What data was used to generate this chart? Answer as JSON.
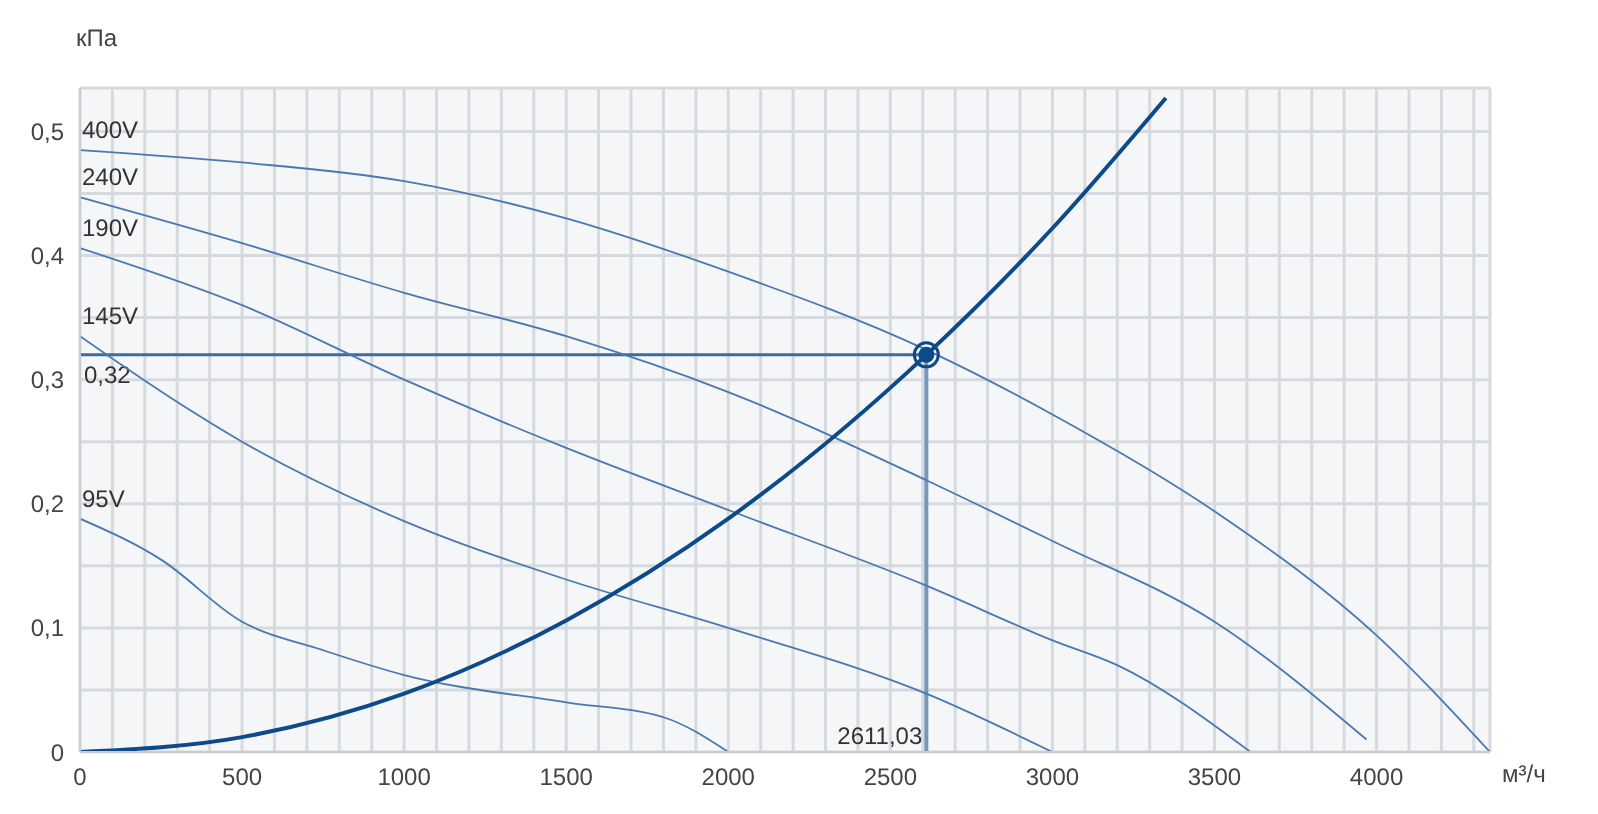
{
  "chart_data": {
    "type": "line",
    "xlabel": "м³/ч",
    "ylabel": "кПа",
    "xlim": [
      0,
      4350
    ],
    "ylim": [
      0,
      0.535
    ],
    "xticks": [
      0,
      {
        "value": 100,
        "label": null
      },
      {
        "value": 200,
        "label": null
      },
      {
        "value": 300,
        "label": null
      },
      {
        "value": 400,
        "label": null
      },
      500,
      {
        "value": 600,
        "label": null
      },
      {
        "value": 700,
        "label": null
      },
      {
        "value": 800,
        "label": null
      },
      {
        "value": 900,
        "label": null
      },
      1000,
      {
        "value": 1100,
        "label": null
      },
      {
        "value": 1200,
        "label": null
      },
      {
        "value": 1300,
        "label": null
      },
      {
        "value": 1400,
        "label": null
      },
      1500,
      {
        "value": 1600,
        "label": null
      },
      {
        "value": 1700,
        "label": null
      },
      {
        "value": 1800,
        "label": null
      },
      {
        "value": 1900,
        "label": null
      },
      2000,
      {
        "value": 2100,
        "label": null
      },
      {
        "value": 2200,
        "label": null
      },
      {
        "value": 2300,
        "label": null
      },
      {
        "value": 2400,
        "label": null
      },
      2500,
      {
        "value": 2600,
        "label": null
      },
      {
        "value": 2700,
        "label": null
      },
      {
        "value": 2800,
        "label": null
      },
      {
        "value": 2900,
        "label": null
      },
      3000,
      {
        "value": 3100,
        "label": null
      },
      {
        "value": 3200,
        "label": null
      },
      {
        "value": 3300,
        "label": null
      },
      {
        "value": 3400,
        "label": null
      },
      3500,
      {
        "value": 3600,
        "label": null
      },
      {
        "value": 3700,
        "label": null
      },
      {
        "value": 3800,
        "label": null
      },
      {
        "value": 3900,
        "label": null
      },
      4000,
      {
        "value": 4100,
        "label": null
      },
      {
        "value": 4200,
        "label": null
      },
      {
        "value": 4300,
        "label": null
      }
    ],
    "yticks": [
      0,
      {
        "value": 0.05,
        "label": null
      },
      {
        "value": 0.1,
        "label": "0,1"
      },
      {
        "value": 0.15,
        "label": null
      },
      {
        "value": 0.2,
        "label": "0,2"
      },
      {
        "value": 0.25,
        "label": null
      },
      {
        "value": 0.3,
        "label": "0,3"
      },
      {
        "value": 0.35,
        "label": null
      },
      {
        "value": 0.4,
        "label": "0,4"
      },
      {
        "value": 0.45,
        "label": null
      },
      {
        "value": 0.5,
        "label": "0,5"
      }
    ],
    "grid": true,
    "legend": false,
    "marker": "none",
    "line_style": "solid",
    "series": [
      {
        "name": "400V",
        "color": "#4a78b0",
        "x": [
          0,
          500,
          1000,
          1500,
          2000,
          2611.03,
          3000,
          3500,
          4000,
          4350
        ],
        "values": [
          0.485,
          0.475,
          0.46,
          0.43,
          0.387,
          0.324,
          0.272,
          0.194,
          0.094,
          0
        ]
      },
      {
        "name": "240V",
        "color": "#4a78b0",
        "x": [
          0,
          500,
          1000,
          1500,
          2000,
          2611.03,
          3000,
          3500,
          3969
        ],
        "values": [
          0.447,
          0.41,
          0.37,
          0.335,
          0.29,
          0.219,
          0.17,
          0.105,
          0.01
        ]
      },
      {
        "name": "190V",
        "color": "#4a78b0",
        "x": [
          0,
          500,
          1000,
          1500,
          2000,
          2611.03,
          3000,
          3200,
          3611
        ],
        "values": [
          0.406,
          0.36,
          0.3,
          0.245,
          0.195,
          0.134,
          0.09,
          0.07,
          0
        ]
      },
      {
        "name": "145V",
        "color": "#4a78b0",
        "x": [
          0,
          300,
          500,
          1000,
          1500,
          2000,
          2611.03,
          3000
        ],
        "values": [
          0.335,
          0.282,
          0.25,
          0.186,
          0.139,
          0.1,
          0.047,
          0
        ]
      },
      {
        "name": "95V",
        "color": "#4a78b0",
        "x": [
          0,
          250,
          500,
          750,
          1000,
          1500,
          1800,
          2000
        ],
        "values": [
          0.188,
          0.155,
          0.105,
          0.082,
          0.062,
          0.04,
          0.028,
          0
        ]
      },
      {
        "color": "#0d4a8a",
        "x": [
          0,
          500,
          1000,
          1500,
          2000,
          2611.03,
          3000,
          3350
        ],
        "values": [
          0,
          0.012,
          0.047,
          0.106,
          0.188,
          0.32,
          0.422,
          0.527
        ]
      },
      {
        "type": "scatter",
        "marker": "circle",
        "color": "#0d4a8a",
        "x": [
          2611.03
        ],
        "values": [
          0.32
        ]
      }
    ],
    "ref_lines": [
      {
        "axis": "y",
        "value": 0.32,
        "label": "0,32",
        "color": "#3f6a9c"
      },
      {
        "axis": "x",
        "value": 2611.03,
        "label": "2611,03",
        "color": "#7896ba"
      }
    ]
  }
}
